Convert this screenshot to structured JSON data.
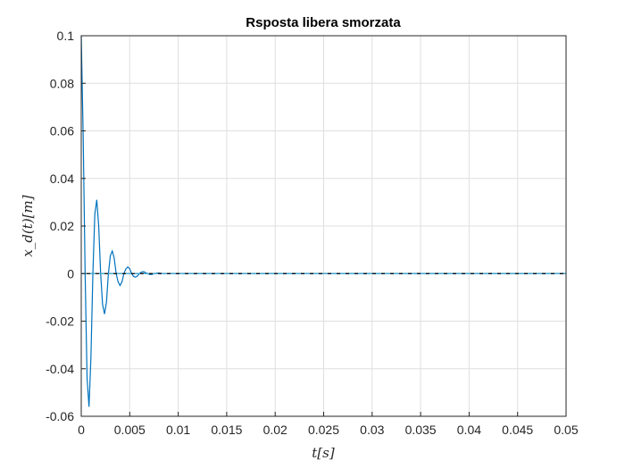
{
  "chart_data": {
    "type": "line",
    "title": "Rsposta libera smorzata",
    "xlabel": "t[s]",
    "ylabel": "x_d(t)[m]",
    "xlim": [
      0,
      0.05
    ],
    "ylim": [
      -0.06,
      0.1
    ],
    "x_ticks": [
      0,
      0.005,
      0.01,
      0.015,
      0.02,
      0.025,
      0.03,
      0.035,
      0.04,
      0.045,
      0.05
    ],
    "x_tick_labels": [
      "0",
      "0.005",
      "0.01",
      "0.015",
      "0.02",
      "0.025",
      "0.03",
      "0.035",
      "0.04",
      "0.045",
      "0.05"
    ],
    "y_ticks": [
      0.1,
      0.08,
      0.06,
      0.04,
      0.02,
      0,
      -0.02,
      -0.04,
      -0.06
    ],
    "y_tick_labels": [
      "0.1",
      "0.08",
      "0.06",
      "0.04",
      "0.02",
      "0",
      "-0.02",
      "-0.04",
      "-0.06"
    ],
    "grid": true,
    "series": [
      {
        "color": "#0072bd",
        "x": [
          0,
          0.0002,
          0.0004,
          0.0006,
          0.0008,
          0.001,
          0.0012,
          0.0014,
          0.0016,
          0.0018,
          0.002,
          0.0022,
          0.0024,
          0.0026,
          0.0028,
          0.003,
          0.0032,
          0.0034,
          0.0036,
          0.0038,
          0.004,
          0.0042,
          0.0044,
          0.0046,
          0.0048,
          0.005,
          0.0052,
          0.0054,
          0.0056,
          0.0058,
          0.006,
          0.0062,
          0.0064,
          0.0066,
          0.0068,
          0.007,
          0.0072,
          0.0074,
          0.0076,
          0.0078,
          0.008,
          0.0082,
          0.0084,
          0.0086,
          0.0088,
          0.009,
          0.0095,
          0.01,
          0.015,
          0.02,
          0.03,
          0.04,
          0.05
        ],
        "y": [
          0.1,
          0.058,
          0.0,
          -0.044,
          -0.056,
          -0.035,
          0.0,
          0.025,
          0.031,
          0.02,
          0.0,
          -0.013,
          -0.017,
          -0.012,
          0.0,
          0.0075,
          0.0095,
          0.0065,
          0.0,
          -0.0035,
          -0.005,
          -0.0035,
          0.0,
          0.002,
          0.0028,
          0.002,
          0.0,
          -0.0012,
          -0.0015,
          -0.001,
          0.0,
          0.0006,
          0.0008,
          0.0005,
          0.0,
          -0.0003,
          -0.0004,
          -0.0002,
          0.0,
          0.0002,
          0.0002,
          0.0001,
          0.0,
          -0.0001,
          0.0,
          0.0,
          0.0,
          0.0,
          0.0,
          0.0,
          0.0,
          0.0,
          0.0
        ]
      },
      {
        "color": "#000000",
        "x": [
          0,
          0.05
        ],
        "y": [
          0,
          0
        ]
      },
      {
        "color": "#4dbeee",
        "x": [
          0,
          0.05
        ],
        "y": [
          0,
          0
        ]
      }
    ]
  }
}
